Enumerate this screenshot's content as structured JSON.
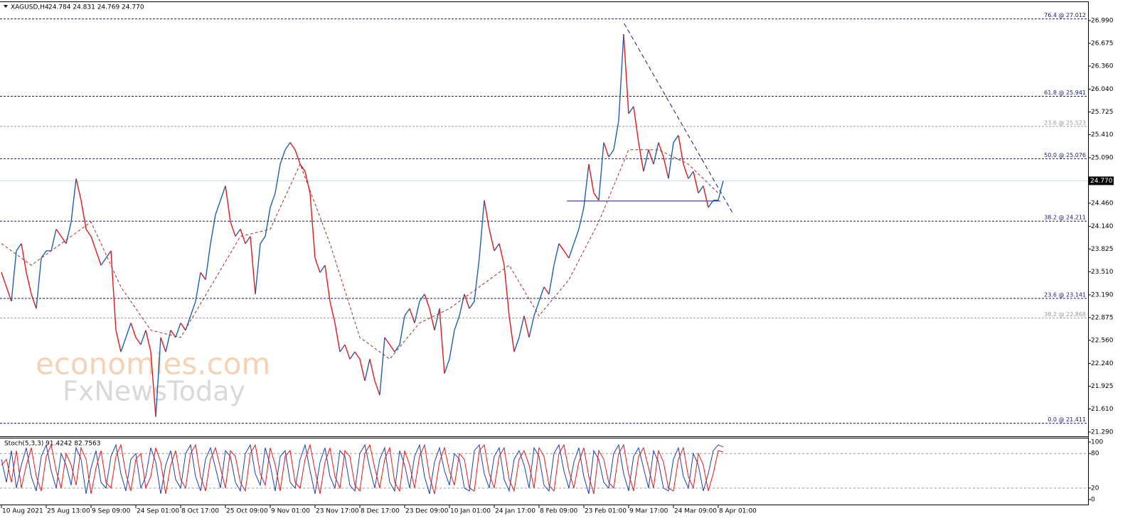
{
  "chart_data": [
    {
      "type": "line",
      "header": "XAGUSD,H4",
      "quote": "24.784 24.831 24.769 24.770",
      "xlim": [
        -0.29,
        218.3
      ],
      "ylim": [
        21.24,
        27.245
      ],
      "xticks": [
        {
          "value": 0,
          "label": "10 Aug 2021"
        },
        {
          "value": 9,
          "label": "25 Aug 13:00"
        },
        {
          "value": 18,
          "label": "9 Sep 09:00"
        },
        {
          "value": 27,
          "label": "24 Sep 01:00"
        },
        {
          "value": 36,
          "label": "8 Oct 17:00"
        },
        {
          "value": 45,
          "label": "25 Oct 09:00"
        },
        {
          "value": 54,
          "label": "9 Nov 01:00"
        },
        {
          "value": 63,
          "label": "23 Nov 17:00"
        },
        {
          "value": 72,
          "label": "8 Dec 17:00"
        },
        {
          "value": 81,
          "label": "23 Dec 09:00"
        },
        {
          "value": 90,
          "label": "10 Jan 01:00"
        },
        {
          "value": 99,
          "label": "24 Jan 17:00"
        },
        {
          "value": 108,
          "label": "8 Feb 09:00"
        },
        {
          "value": 117,
          "label": "23 Feb 01:00"
        },
        {
          "value": 126,
          "label": "9 Mar 17:00"
        },
        {
          "value": 135,
          "label": "24 Mar 09:00"
        },
        {
          "value": 144,
          "label": "8 Apr 01:00"
        }
      ],
      "yticks": [
        {
          "value": 26.99,
          "label": "26.990"
        },
        26.675,
        {
          "value": 26.36,
          "label": "26.360"
        },
        {
          "value": 26.04,
          "label": "26.040"
        },
        25.725,
        {
          "value": 25.41,
          "label": "25.410"
        },
        {
          "value": 25.09,
          "label": "25.090"
        },
        {
          "value": 24.46,
          "label": "24.460"
        },
        {
          "value": 24.14,
          "label": "24.140"
        },
        23.825,
        {
          "value": 23.51,
          "label": "23.510"
        },
        {
          "value": 23.19,
          "label": "23.190"
        },
        22.875,
        {
          "value": 22.56,
          "label": "22.560"
        },
        {
          "value": 22.24,
          "label": "22.240"
        },
        21.925,
        {
          "value": 21.61,
          "label": "21.610"
        },
        {
          "value": 21.29,
          "label": "21.290"
        }
      ],
      "series": [
        {
          "color_up": "#1f5fb0",
          "color_down": "#e3171b",
          "values": [
            23.5,
            23.3,
            23.1,
            23.8,
            23.9,
            23.5,
            23.2,
            23.0,
            23.7,
            23.8,
            23.8,
            24.1,
            24.0,
            23.9,
            24.2,
            24.8,
            24.5,
            24.1,
            24.0,
            23.8,
            23.6,
            23.7,
            23.8,
            22.7,
            22.4,
            22.6,
            22.8,
            22.6,
            22.5,
            22.7,
            22.4,
            21.5,
            22.6,
            22.4,
            22.7,
            22.6,
            22.8,
            22.7,
            22.9,
            23.1,
            23.5,
            23.4,
            23.9,
            24.3,
            24.5,
            24.7,
            24.2,
            24.0,
            24.1,
            23.9,
            24.0,
            23.2,
            23.9,
            24.0,
            24.4,
            24.6,
            25.0,
            25.2,
            25.3,
            25.2,
            25.0,
            24.9,
            24.6,
            23.7,
            23.5,
            23.6,
            23.1,
            22.8,
            22.4,
            22.5,
            22.3,
            22.4,
            22.3,
            22.0,
            22.3,
            22.0,
            21.8,
            22.6,
            22.5,
            22.4,
            22.5,
            22.9,
            23.0,
            22.8,
            23.1,
            23.2,
            23.0,
            22.7,
            23.0,
            22.1,
            22.3,
            22.7,
            22.9,
            23.2,
            23.0,
            23.1,
            23.7,
            24.5,
            24.1,
            23.8,
            23.9,
            23.6,
            22.9,
            22.4,
            22.6,
            22.9,
            22.6,
            22.9,
            23.1,
            23.3,
            23.2,
            23.6,
            23.9,
            23.8,
            23.7,
            23.9,
            24.1,
            24.4,
            25.0,
            24.6,
            24.5,
            25.3,
            25.1,
            25.2,
            25.6,
            26.8,
            25.7,
            25.8,
            25.3,
            24.9,
            25.2,
            25.0,
            25.3,
            25.1,
            24.8,
            25.3,
            25.4,
            25.0,
            24.8,
            24.9,
            24.6,
            24.7,
            24.4,
            24.5,
            24.5,
            24.77
          ]
        },
        {
          "color": "#a0302a",
          "dash": true,
          "x": [
            0,
            6,
            12,
            18,
            24,
            30,
            36,
            42,
            48,
            54,
            60,
            66,
            72,
            78,
            84,
            90,
            96,
            102,
            108,
            114,
            120,
            126,
            132,
            138,
            144
          ],
          "values": [
            23.9,
            23.6,
            23.9,
            24.2,
            23.3,
            22.7,
            22.6,
            23.3,
            24.0,
            24.1,
            25.0,
            23.9,
            22.6,
            22.3,
            22.8,
            23.0,
            23.3,
            23.6,
            22.9,
            23.4,
            24.2,
            25.2,
            25.2,
            25.0,
            24.6
          ]
        }
      ],
      "current_price": {
        "value": 24.77,
        "label": "24.770",
        "color": "#bfe3f0"
      },
      "levels": [
        {
          "value": 27.012,
          "label": "76.4 @ 27.012",
          "color": "#1a1a80"
        },
        {
          "value": 25.941,
          "label": "61.8 @ 25.941",
          "color": "#1a1a80"
        },
        {
          "value": 25.523,
          "label": "23.6 @ 25.523",
          "color": "#9a9a9a"
        },
        {
          "value": 25.076,
          "label": "50.0 @ 25.076",
          "color": "#1a1a80"
        },
        {
          "value": 24.211,
          "label": "38.2 @ 24.211",
          "color": "#1a1a80"
        },
        {
          "value": 23.141,
          "label": "23.6 @ 23.141",
          "color": "#1a1a80"
        },
        {
          "value": 22.868,
          "label": "38.2 @ 22.868",
          "color": "#9a9a9a"
        },
        {
          "value": 21.411,
          "label": "0.0 @ 21.411",
          "color": "#1a1a80"
        }
      ],
      "trendlines": [
        {
          "x": [
            125.1,
            147.1
          ],
          "y": [
            26.95,
            24.3
          ],
          "color": "#1a1a80",
          "dash": true
        },
        {
          "x": [
            113.6,
            144.4
          ],
          "y": [
            24.49,
            24.49
          ],
          "color": "#1a1a80",
          "dash": false
        }
      ],
      "watermark": [
        "economies.com",
        "FxNewsToday"
      ]
    },
    {
      "type": "oscillator",
      "label": "Stoch(5,3,3) 91.4242 82.7563",
      "xlim": [
        -0.29,
        218.3
      ],
      "ylim": [
        -8.6,
        106.2
      ],
      "yticks": [
        100,
        80,
        20,
        0
      ],
      "dashed_levels": [
        80,
        20
      ],
      "series": [
        {
          "color": "#1f3fb0",
          "values": [
            70,
            30,
            85,
            20,
            60,
            90,
            40,
            15,
            75,
            95,
            50,
            20,
            80,
            60,
            25,
            90,
            70,
            10,
            55,
            85,
            30,
            20,
            75,
            95,
            45,
            15,
            70,
            80,
            20,
            40,
            90,
            65,
            10,
            60,
            85,
            35,
            20,
            80,
            95,
            40,
            15,
            70,
            90,
            55,
            20,
            85,
            75,
            30,
            15,
            80,
            95,
            45,
            25,
            90,
            60,
            15,
            75,
            85,
            30,
            20,
            70,
            95,
            50,
            10,
            65,
            90,
            40,
            20,
            85,
            75,
            25,
            15,
            80,
            95,
            55,
            20,
            70,
            90,
            30,
            15,
            85,
            60,
            20,
            75,
            95,
            40,
            10,
            65,
            90,
            50,
            25,
            80,
            70,
            20,
            15,
            85,
            95,
            45,
            20,
            75,
            90,
            35,
            15,
            70,
            85,
            60,
            20,
            90,
            75,
            25,
            15,
            80,
            95,
            50,
            20,
            65,
            90,
            40,
            10,
            85,
            70,
            30,
            20,
            80,
            95,
            45,
            15,
            75,
            90,
            55,
            20,
            85,
            65,
            20,
            15,
            70,
            90,
            40,
            20,
            80,
            60,
            15,
            45,
            85,
            95,
            91.4242
          ]
        },
        {
          "color": "#e3171b",
          "values": [
            60,
            70,
            30,
            85,
            20,
            60,
            90,
            40,
            15,
            75,
            95,
            50,
            20,
            80,
            60,
            25,
            90,
            70,
            10,
            55,
            85,
            30,
            20,
            75,
            95,
            45,
            15,
            70,
            80,
            20,
            40,
            90,
            65,
            10,
            60,
            85,
            35,
            20,
            80,
            95,
            40,
            15,
            70,
            90,
            55,
            20,
            85,
            75,
            30,
            15,
            80,
            95,
            45,
            25,
            90,
            60,
            15,
            75,
            85,
            30,
            20,
            70,
            95,
            50,
            10,
            65,
            90,
            40,
            20,
            85,
            75,
            25,
            15,
            80,
            95,
            55,
            20,
            70,
            90,
            30,
            15,
            85,
            60,
            20,
            75,
            95,
            40,
            10,
            65,
            90,
            50,
            25,
            80,
            70,
            20,
            15,
            85,
            95,
            45,
            20,
            75,
            90,
            35,
            15,
            70,
            85,
            60,
            20,
            90,
            75,
            25,
            15,
            80,
            95,
            50,
            20,
            65,
            90,
            40,
            10,
            85,
            70,
            30,
            20,
            80,
            95,
            45,
            15,
            75,
            90,
            55,
            20,
            85,
            65,
            20,
            15,
            70,
            90,
            40,
            20,
            80,
            60,
            15,
            45,
            85,
            82.7563
          ]
        }
      ]
    }
  ]
}
